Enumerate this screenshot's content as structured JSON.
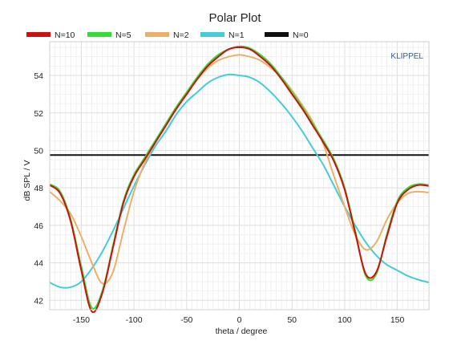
{
  "chart_data": {
    "type": "line",
    "title": "Polar Plot",
    "watermark": "KLIPPEL",
    "xlabel": "theta / degree",
    "ylabel": "dB SPL / V",
    "xlim": [
      -180,
      180
    ],
    "ylim": [
      41.5,
      55.8
    ],
    "grid": true,
    "legend_position": "top",
    "x_ticks": [
      -150,
      -100,
      -50,
      0,
      50,
      100,
      150
    ],
    "x_tick_labels": [
      "-150",
      "-100",
      "-50",
      "0",
      "50",
      "100",
      "150"
    ],
    "y_ticks": [
      42,
      44,
      46,
      48,
      50,
      52,
      54
    ],
    "y_tick_labels": [
      "42",
      "44",
      "46",
      "48",
      "50",
      "52",
      "54"
    ],
    "x": [
      -180,
      -170,
      -160,
      -150,
      -140,
      -130,
      -120,
      -110,
      -100,
      -90,
      -80,
      -70,
      -60,
      -50,
      -40,
      -30,
      -20,
      -10,
      0,
      10,
      20,
      30,
      40,
      50,
      60,
      70,
      80,
      90,
      100,
      110,
      120,
      130,
      140,
      150,
      160,
      170,
      180
    ],
    "series": [
      {
        "name": "N=10",
        "color": "#cc1111",
        "values": [
          48.15,
          47.7,
          46.2,
          43.6,
          41.4,
          42.4,
          44.8,
          47.2,
          48.6,
          49.5,
          50.4,
          51.3,
          52.2,
          53.0,
          53.8,
          54.5,
          55.0,
          55.4,
          55.5,
          55.4,
          55.0,
          54.5,
          53.8,
          53.0,
          52.2,
          51.3,
          50.4,
          49.4,
          47.9,
          45.6,
          43.4,
          43.5,
          45.4,
          47.2,
          47.9,
          48.15,
          48.1
        ]
      },
      {
        "name": "N=5",
        "color": "#33dd33",
        "values": [
          48.2,
          47.8,
          46.3,
          43.8,
          41.6,
          42.5,
          44.9,
          47.3,
          48.7,
          49.6,
          50.5,
          51.4,
          52.3,
          53.1,
          53.9,
          54.6,
          55.1,
          55.4,
          55.55,
          55.45,
          55.1,
          54.6,
          53.9,
          53.1,
          52.3,
          51.4,
          50.5,
          49.5,
          48.0,
          45.7,
          43.3,
          43.4,
          45.5,
          47.3,
          48.0,
          48.2,
          48.15
        ]
      },
      {
        "name": "N=2",
        "color": "#eab06a",
        "values": [
          47.8,
          47.3,
          46.6,
          45.4,
          44.0,
          42.9,
          43.5,
          45.7,
          47.8,
          49.3,
          50.4,
          51.4,
          52.3,
          53.1,
          53.8,
          54.4,
          54.8,
          55.0,
          55.1,
          55.0,
          54.8,
          54.4,
          53.9,
          53.2,
          52.4,
          51.5,
          50.3,
          48.6,
          47.0,
          45.5,
          44.7,
          45.1,
          46.3,
          47.2,
          47.7,
          47.8,
          47.75
        ]
      },
      {
        "name": "N=1",
        "color": "#44ccd8",
        "values": [
          42.95,
          42.7,
          42.7,
          43.0,
          43.7,
          44.6,
          45.7,
          46.9,
          48.1,
          49.2,
          50.2,
          51.0,
          51.9,
          52.6,
          53.1,
          53.6,
          53.9,
          54.05,
          54.0,
          53.9,
          53.6,
          53.1,
          52.5,
          51.8,
          51.0,
          50.1,
          49.2,
          48.1,
          47.0,
          46.0,
          45.1,
          44.4,
          43.9,
          43.6,
          43.3,
          43.1,
          42.95
        ]
      },
      {
        "name": "N=0",
        "color": "#111111",
        "values": [
          49.75,
          49.75,
          49.75,
          49.75,
          49.75,
          49.75,
          49.75,
          49.75,
          49.75,
          49.75,
          49.75,
          49.75,
          49.75,
          49.75,
          49.75,
          49.75,
          49.75,
          49.75,
          49.75,
          49.75,
          49.75,
          49.75,
          49.75,
          49.75,
          49.75,
          49.75,
          49.75,
          49.75,
          49.75,
          49.75,
          49.75,
          49.75,
          49.75,
          49.75,
          49.75,
          49.75,
          49.75
        ]
      }
    ]
  }
}
